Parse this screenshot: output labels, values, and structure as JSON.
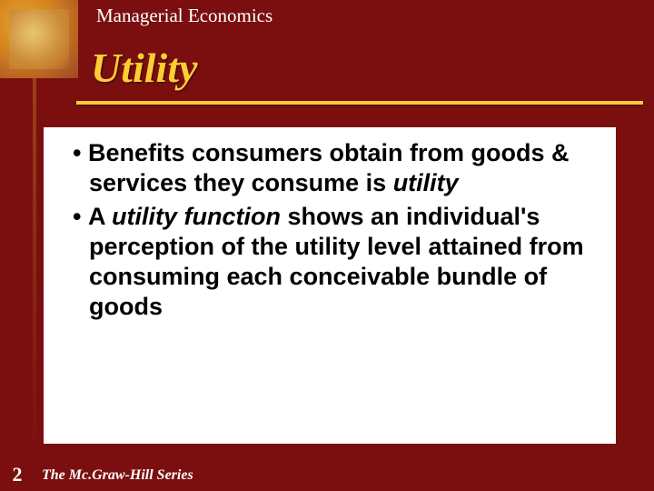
{
  "slide": {
    "header": "Managerial Economics",
    "title": "Utility",
    "page_number": "2",
    "series": "The Mc.Graw-Hill Series",
    "bullets": [
      {
        "pre": "Benefits consumers obtain from goods & services they consume is ",
        "italic1": "utility",
        "mid": "",
        "italic2": "",
        "post": ""
      },
      {
        "pre": "A ",
        "italic1": "utility function",
        "mid": " shows an individual's perception of the utility level attained from consuming each conceivable bundle of goods",
        "italic2": "",
        "post": ""
      }
    ]
  },
  "colors": {
    "background": "#7b0f0f",
    "accent": "#ffcc33",
    "content_bg": "#ffffff",
    "text": "#000000",
    "header_text": "#ffffff"
  }
}
